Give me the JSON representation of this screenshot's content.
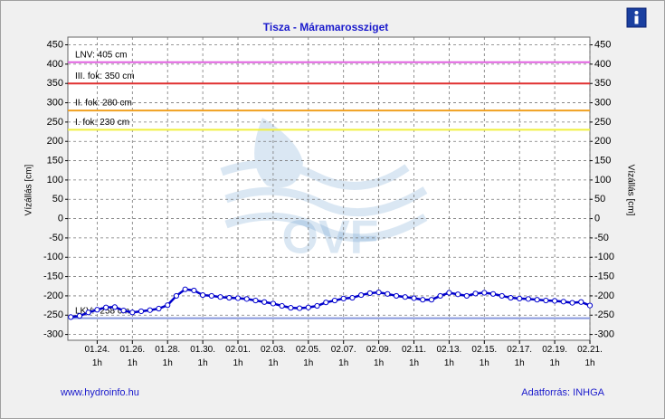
{
  "chart_data": {
    "type": "line",
    "title": "Tisza - Máramarossziget",
    "y_label": "Vízállás [cm]",
    "y2_label": "Vízállás [cm]",
    "footer_left": "www.hydroinfo.hu",
    "footer_right": "Adatforrás: INHGA",
    "watermark": "OVF",
    "ylim": [
      -315,
      470
    ],
    "yticks": [
      -300,
      -250,
      -200,
      -150,
      -100,
      -50,
      0,
      50,
      100,
      150,
      200,
      250,
      300,
      350,
      400,
      450
    ],
    "y2lim": [
      -315,
      470
    ],
    "y2ticks": [
      -300,
      -250,
      -200,
      -150,
      -100,
      -50,
      0,
      50,
      100,
      150,
      200,
      250,
      300,
      350,
      400,
      450
    ],
    "xlim": [
      "01.22. 9h",
      "02.21. 1h"
    ],
    "xticks": [
      "01.24. 1h",
      "01.26. 1h",
      "01.28. 1h",
      "01.30. 1h",
      "02.01. 1h",
      "02.03. 1h",
      "02.05. 1h",
      "02.07. 1h",
      "02.09. 1h",
      "02.11. 1h",
      "02.13. 1h",
      "02.15. 1h",
      "02.17. 1h",
      "02.19. 1h",
      "02.21. 1h"
    ],
    "grid": true,
    "thresholds": [
      {
        "label": "LNV: 405 cm",
        "value": 405,
        "color": "#e060e0"
      },
      {
        "label": "III. fok: 350 cm",
        "value": 350,
        "color": "#e03030"
      },
      {
        "label": "II. fok: 280 cm",
        "value": 280,
        "color": "#f0a020"
      },
      {
        "label": "I. fok: 230 cm",
        "value": 230,
        "color": "#f0f040"
      },
      {
        "label": "LKV: -258 cm",
        "value": -258,
        "color": "#8899dd"
      }
    ],
    "x": [
      "01.22. 13h",
      "01.23. 1h",
      "01.23. 13h",
      "01.24. 1h",
      "01.24. 13h",
      "01.25. 1h",
      "01.25. 13h",
      "01.26. 1h",
      "01.26. 13h",
      "01.27. 1h",
      "01.27. 13h",
      "01.28. 1h",
      "01.28. 13h",
      "01.29. 1h",
      "01.29. 13h",
      "01.30. 1h",
      "01.30. 13h",
      "01.31. 1h",
      "01.31. 13h",
      "02.01. 1h",
      "02.01. 13h",
      "02.02. 1h",
      "02.02. 13h",
      "02.03. 1h",
      "02.03. 13h",
      "02.04. 1h",
      "02.04. 13h",
      "02.05. 1h",
      "02.05. 13h",
      "02.06. 1h",
      "02.06. 13h",
      "02.07. 1h",
      "02.07. 13h",
      "02.08. 1h",
      "02.08. 13h",
      "02.09. 1h",
      "02.09. 13h",
      "02.10. 1h",
      "02.10. 13h",
      "02.11. 1h",
      "02.11. 13h",
      "02.12. 1h",
      "02.12. 13h",
      "02.13. 1h",
      "02.13. 13h",
      "02.14. 1h",
      "02.14. 13h",
      "02.15. 1h",
      "02.15. 13h",
      "02.16. 1h",
      "02.16. 13h",
      "02.17. 1h",
      "02.17. 13h",
      "02.18. 1h",
      "02.18. 13h",
      "02.19. 1h",
      "02.19. 13h",
      "02.20. 1h",
      "02.20. 13h",
      "02.21. 1h"
    ],
    "series": [
      {
        "color": "#0000cc",
        "values": [
          -255,
          -252,
          -243,
          -236,
          -230,
          -229,
          -238,
          -243,
          -240,
          -237,
          -233,
          -224,
          -200,
          -183,
          -186,
          -198,
          -200,
          -203,
          -205,
          -206,
          -208,
          -212,
          -216,
          -220,
          -226,
          -231,
          -232,
          -230,
          -226,
          -217,
          -212,
          -207,
          -205,
          -198,
          -193,
          -191,
          -195,
          -200,
          -203,
          -206,
          -210,
          -210,
          -200,
          -192,
          -196,
          -200,
          -194,
          -192,
          -195,
          -200,
          -205,
          -207,
          -208,
          -210,
          -212,
          -213,
          -215,
          -218,
          -216,
          -225
        ]
      }
    ]
  }
}
